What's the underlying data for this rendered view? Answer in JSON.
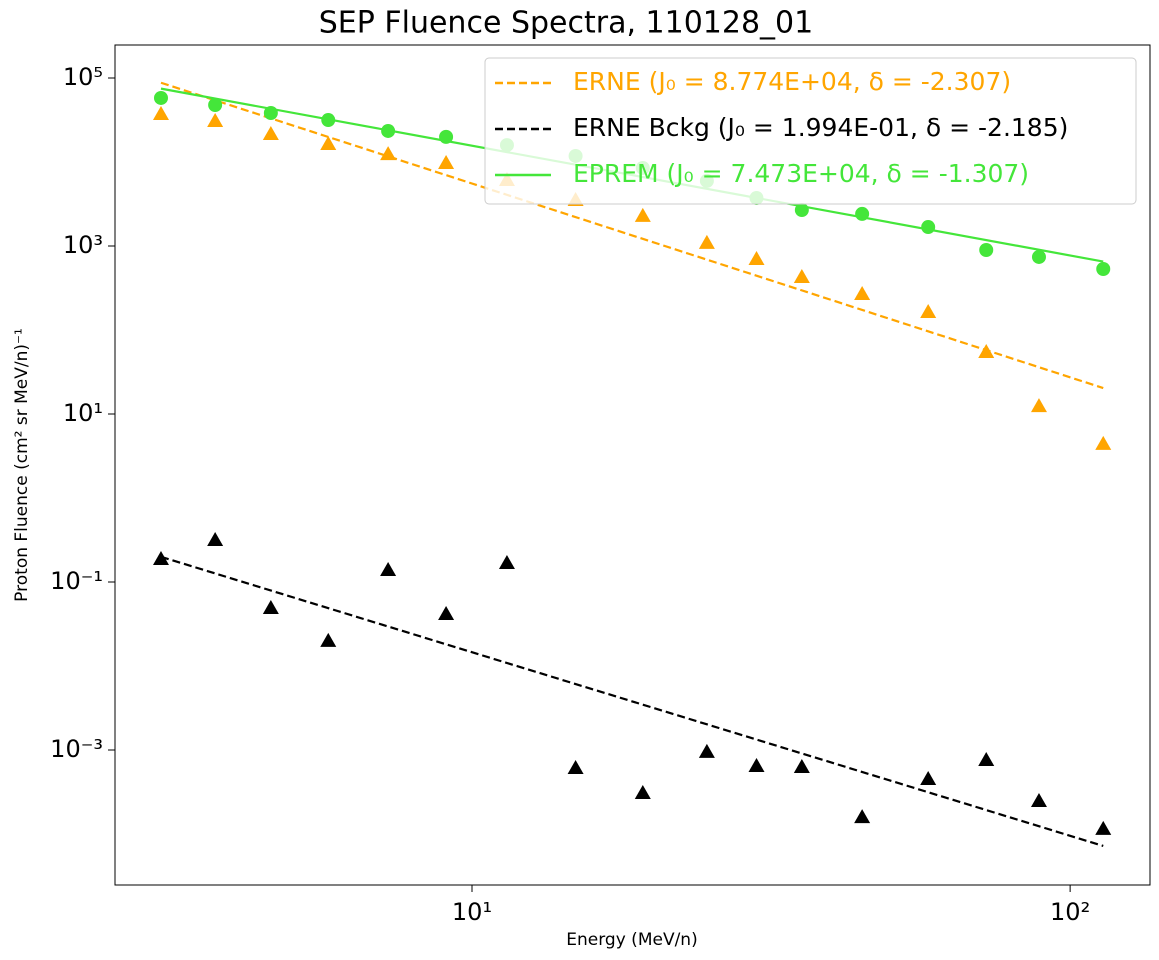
{
  "chart_data": {
    "type": "scatter",
    "title": "SEP Fluence Spectra, 110128_01",
    "xlabel": "Energy (MeV/n)",
    "ylabel": "Proton Fluence (cm² sr MeV/n)⁻¹",
    "xscale": "log",
    "yscale": "log",
    "xlim": [
      2.53,
      136
    ],
    "ylim": [
      2.47e-05,
      247000
    ],
    "xticks": [
      {
        "value": 10,
        "label": "10¹"
      },
      {
        "value": 100,
        "label": "10²"
      }
    ],
    "yticks": [
      {
        "value": 0.001,
        "label": "10⁻³"
      },
      {
        "value": 0.1,
        "label": "10⁻¹"
      },
      {
        "value": 10,
        "label": "10¹"
      },
      {
        "value": 1000,
        "label": "10³"
      },
      {
        "value": 100000,
        "label": "10⁵"
      }
    ],
    "legend": "upper right",
    "x": [
      3.02,
      3.72,
      4.61,
      5.75,
      7.24,
      9.05,
      11.44,
      14.9,
      19.3,
      24.7,
      29.9,
      35.6,
      44.9,
      57.9,
      72.4,
      88.7,
      113.6
    ],
    "series": [
      {
        "name": "ERNE (J₀ = 8.774E+04, δ = -2.307)",
        "color": "#ffa500",
        "marker": "triangle",
        "line": "dashed",
        "fit": {
          "J0": 87740,
          "delta": -2.307
        },
        "values": [
          37300,
          30800,
          21500,
          16400,
          12400,
          9730,
          6110,
          3530,
          2280,
          1090,
          700,
          428,
          268,
          164,
          54.7,
          12.4,
          4.4
        ]
      },
      {
        "name": "ERNE Bckg (J₀ = 1.994E-01, δ = -2.185)",
        "color": "#000000",
        "marker": "triangle",
        "line": "dashed",
        "fit": {
          "J0": 0.1994,
          "delta": -2.185
        },
        "values": [
          0.188,
          0.316,
          0.049,
          0.0199,
          0.139,
          0.0416,
          0.168,
          0.00061,
          0.000308,
          0.00095,
          0.000645,
          0.000628,
          0.000159,
          0.000452,
          0.00076,
          0.000247,
          0.000115
        ]
      },
      {
        "name": "EPREM (J₀ = 7.473E+04, δ = -1.307)",
        "color": "#44e63a",
        "marker": "circle",
        "line": "solid",
        "fit": {
          "J0": 74730,
          "delta": -1.307
        },
        "values": [
          57800,
          47700,
          38300,
          31600,
          23400,
          19900,
          15900,
          11800,
          8490,
          5950,
          3730,
          2680,
          2410,
          1680,
          896,
          740,
          532
        ]
      }
    ]
  }
}
